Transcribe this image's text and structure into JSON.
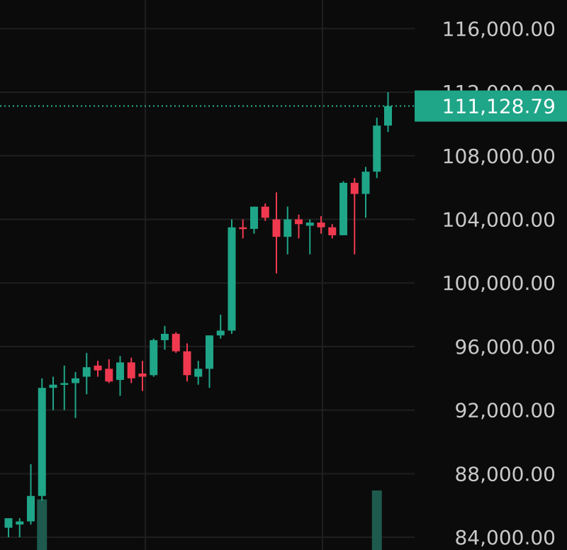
{
  "chart_data": {
    "type": "candlestick",
    "title": "",
    "xlabel": "",
    "ylabel": "",
    "ylim": [
      83200,
      117800
    ],
    "grid": true,
    "colors": {
      "background": "#0b0b0b",
      "grid": "#1f1f1f",
      "up": "#1fa588",
      "down": "#f0394f",
      "volume": "#1e5a4e",
      "price_line": "#2bb495",
      "price_tag": "#1fa588"
    },
    "y_ticks": [
      {
        "value": 116000,
        "label": "116,000.00"
      },
      {
        "value": 112000,
        "label": "112,000.00"
      },
      {
        "value": 108000,
        "label": "108,000.00"
      },
      {
        "value": 104000,
        "label": "104,000.00"
      },
      {
        "value": 100000,
        "label": "100,000.00"
      },
      {
        "value": 96000,
        "label": "96,000.00"
      },
      {
        "value": 92000,
        "label": "92,000.00"
      },
      {
        "value": 88000,
        "label": "88,000.00"
      },
      {
        "value": 84000,
        "label": "84,000.00"
      }
    ],
    "current_price": {
      "value": 111128.79,
      "label": "111,128.79"
    },
    "candles": [
      {
        "o": 84600,
        "h": 85100,
        "l": 84000,
        "c": 85200
      },
      {
        "o": 84800,
        "h": 85200,
        "l": 84000,
        "c": 85000
      },
      {
        "o": 85000,
        "h": 88600,
        "l": 84800,
        "c": 86600
      },
      {
        "o": 86600,
        "h": 94000,
        "l": 86300,
        "c": 93400
      },
      {
        "o": 93400,
        "h": 94100,
        "l": 92000,
        "c": 93600
      },
      {
        "o": 93700,
        "h": 94800,
        "l": 92000,
        "c": 93700
      },
      {
        "o": 93700,
        "h": 94400,
        "l": 91500,
        "c": 94000
      },
      {
        "o": 94100,
        "h": 95600,
        "l": 93000,
        "c": 94700
      },
      {
        "o": 94800,
        "h": 95100,
        "l": 94100,
        "c": 94500
      },
      {
        "o": 94600,
        "h": 95200,
        "l": 93700,
        "c": 93800
      },
      {
        "o": 93900,
        "h": 95400,
        "l": 92900,
        "c": 95000
      },
      {
        "o": 95000,
        "h": 95300,
        "l": 93700,
        "c": 94000
      },
      {
        "o": 94300,
        "h": 95100,
        "l": 93200,
        "c": 94100
      },
      {
        "o": 94200,
        "h": 96500,
        "l": 94100,
        "c": 96400
      },
      {
        "o": 96400,
        "h": 97300,
        "l": 95800,
        "c": 96800
      },
      {
        "o": 96800,
        "h": 96900,
        "l": 95600,
        "c": 95700
      },
      {
        "o": 95700,
        "h": 96200,
        "l": 93800,
        "c": 94200
      },
      {
        "o": 94100,
        "h": 95100,
        "l": 93600,
        "c": 94600
      },
      {
        "o": 94600,
        "h": 96700,
        "l": 93400,
        "c": 96700
      },
      {
        "o": 96700,
        "h": 98000,
        "l": 96500,
        "c": 97000
      },
      {
        "o": 97000,
        "h": 104000,
        "l": 96800,
        "c": 103500
      },
      {
        "o": 103500,
        "h": 104000,
        "l": 102800,
        "c": 103400
      },
      {
        "o": 103400,
        "h": 104800,
        "l": 103100,
        "c": 104800
      },
      {
        "o": 104800,
        "h": 105000,
        "l": 103900,
        "c": 104100
      },
      {
        "o": 104000,
        "h": 105700,
        "l": 100600,
        "c": 102900
      },
      {
        "o": 102900,
        "h": 104800,
        "l": 101800,
        "c": 104000
      },
      {
        "o": 104000,
        "h": 104300,
        "l": 102800,
        "c": 103700
      },
      {
        "o": 103600,
        "h": 104000,
        "l": 101800,
        "c": 103800
      },
      {
        "o": 103800,
        "h": 104200,
        "l": 103100,
        "c": 103500
      },
      {
        "o": 103500,
        "h": 103700,
        "l": 102800,
        "c": 103000
      },
      {
        "o": 103000,
        "h": 106400,
        "l": 103000,
        "c": 106300
      },
      {
        "o": 106300,
        "h": 106600,
        "l": 101800,
        "c": 105600
      },
      {
        "o": 105600,
        "h": 107300,
        "l": 104100,
        "c": 107000
      },
      {
        "o": 107000,
        "h": 110400,
        "l": 106600,
        "c": 109900
      },
      {
        "o": 109900,
        "h": 112000,
        "l": 109500,
        "c": 111128.79
      }
    ],
    "volume_bars": [
      {
        "index": 3,
        "level": 0.85
      },
      {
        "index": 33,
        "level": 1.0
      }
    ]
  }
}
